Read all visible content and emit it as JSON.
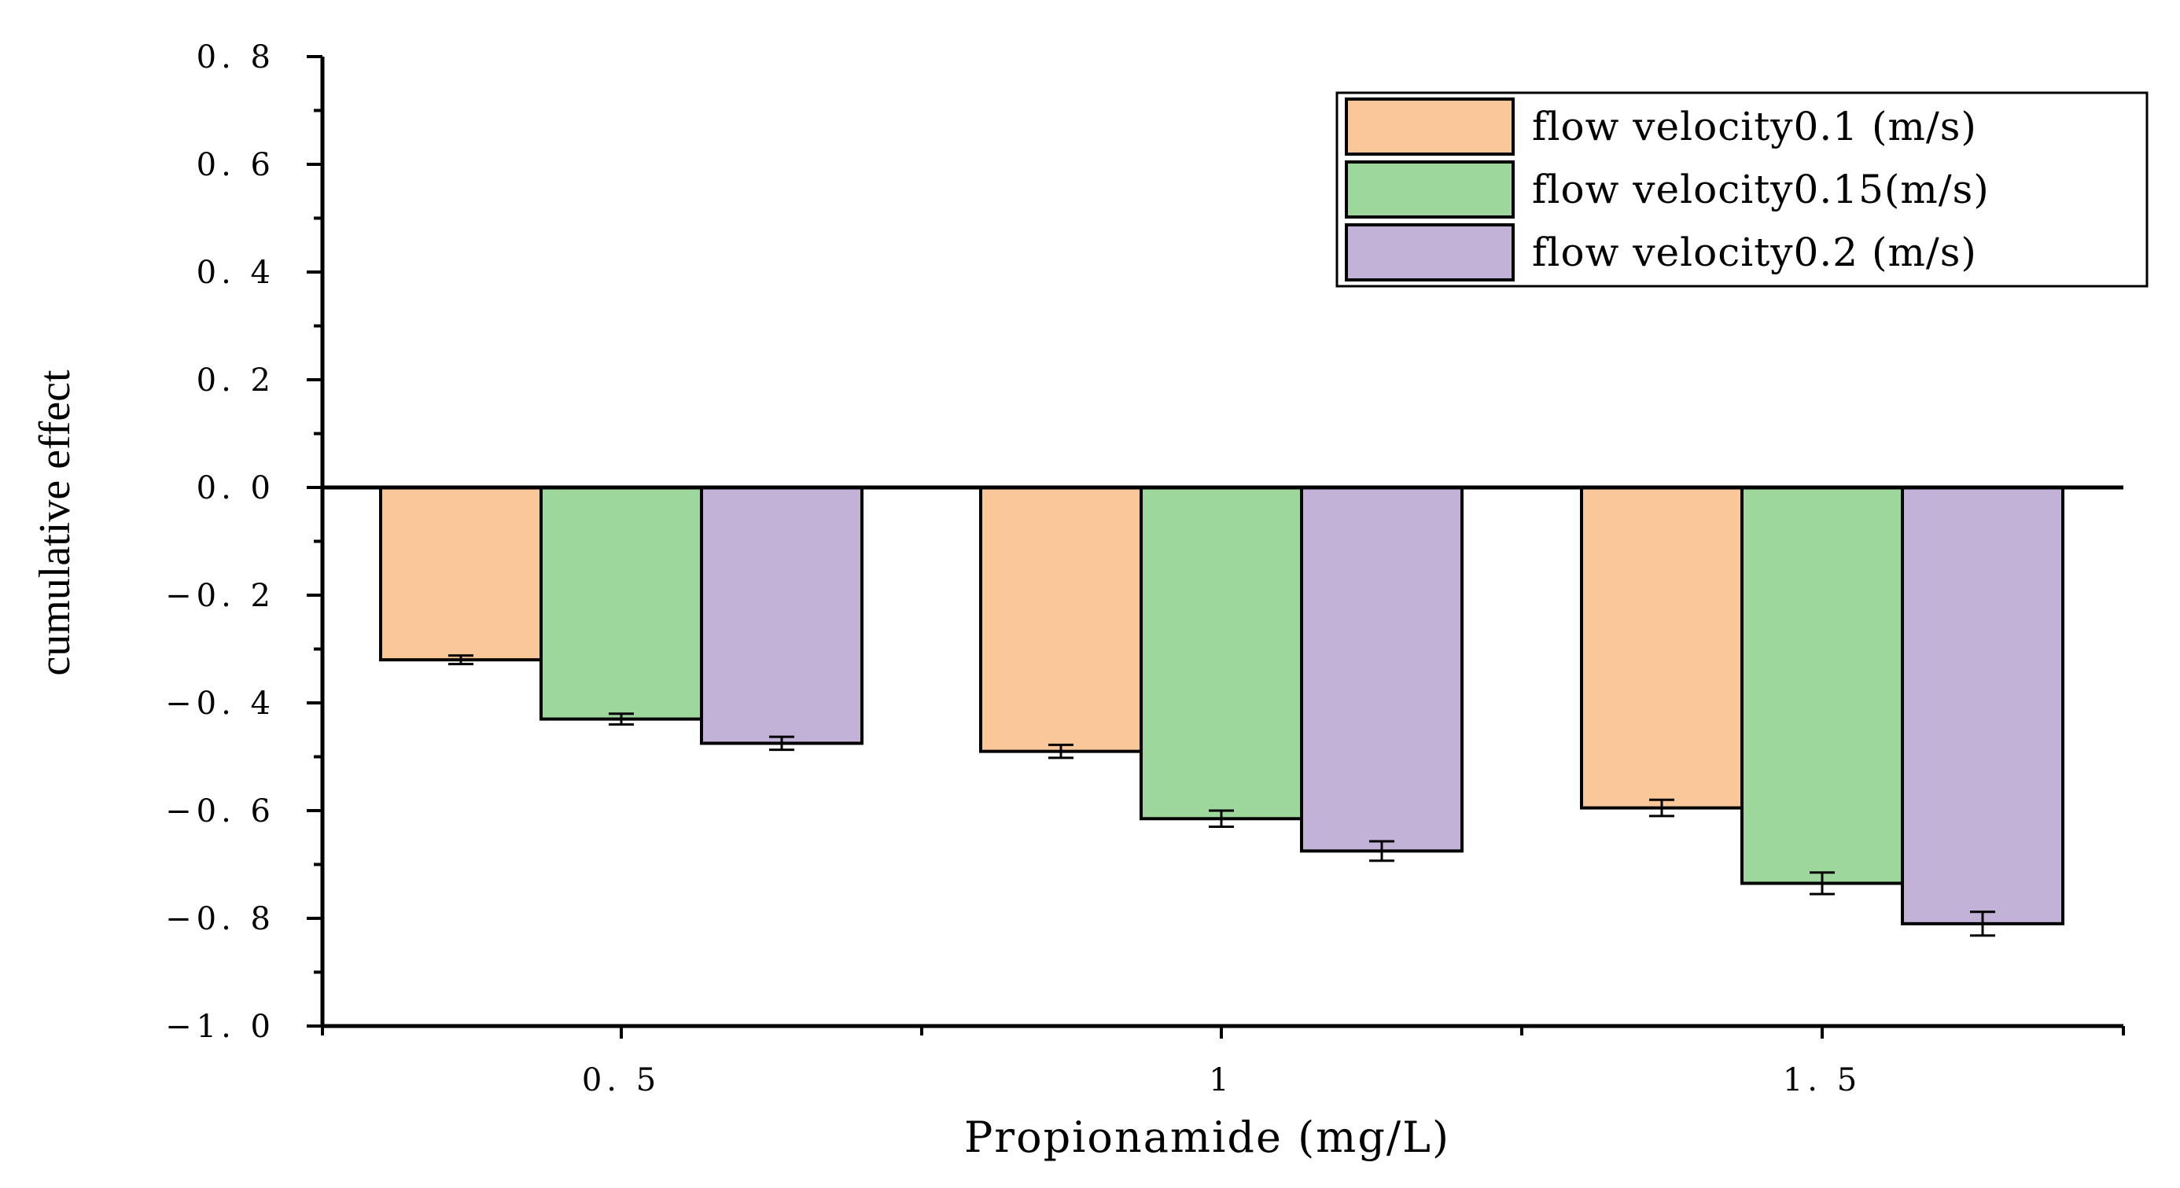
{
  "chart_data": {
    "type": "bar",
    "title": "",
    "xlabel": "Propionamide (mg/L)",
    "ylabel": "cumulative effect",
    "categories": [
      "0.5",
      "1",
      "1.5"
    ],
    "x_tick_labels": [
      "0. 5",
      "1",
      "1. 5"
    ],
    "ylim": [
      -1.0,
      0.8
    ],
    "y_ticks": [
      0.8,
      0.6,
      0.4,
      0.2,
      0.0,
      -0.2,
      -0.4,
      -0.6,
      -0.8,
      -1.0
    ],
    "y_tick_labels": [
      "0. 8",
      "0. 6",
      "0. 4",
      "0. 2",
      "0. 0",
      "−0. 2",
      "−0. 4",
      "−0. 6",
      "−0. 8",
      "−1. 0"
    ],
    "grid": false,
    "legend_position": "top-right",
    "series": [
      {
        "name": "flow velocity0.1 (m/s)",
        "color": "#FAC898",
        "values": [
          -0.32,
          -0.49,
          -0.595
        ],
        "errors": [
          0.008,
          0.012,
          0.015
        ]
      },
      {
        "name": "flow velocity0.15(m/s)",
        "color": "#9DD79B",
        "values": [
          -0.43,
          -0.615,
          -0.735
        ],
        "errors": [
          0.01,
          0.015,
          0.02
        ]
      },
      {
        "name": "flow velocity0.2 (m/s)",
        "color": "#C2B2D7",
        "values": [
          -0.475,
          -0.675,
          -0.81
        ],
        "errors": [
          0.012,
          0.018,
          0.022
        ]
      }
    ]
  }
}
